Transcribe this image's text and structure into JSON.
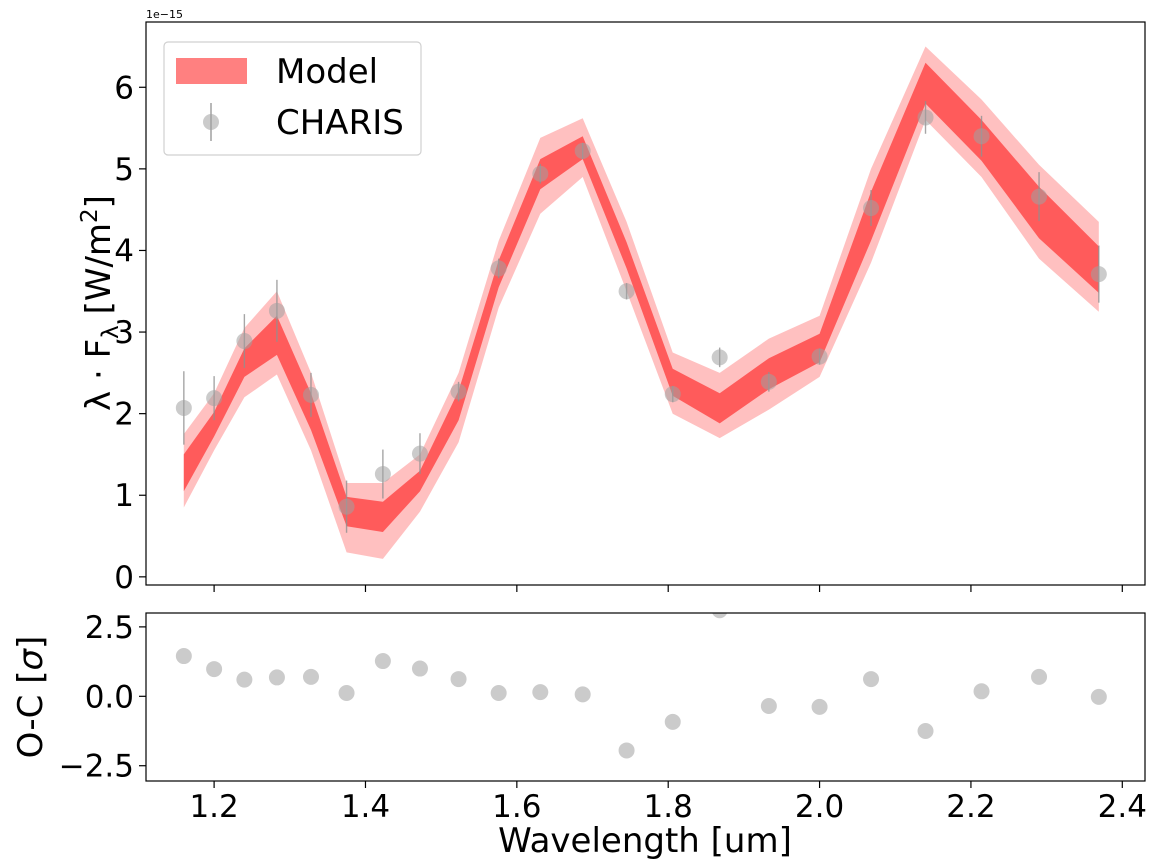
{
  "chart_data": [
    {
      "type": "line",
      "panel": "top",
      "xlabel": "",
      "ylabel_parts": [
        "λ · F",
        "λ",
        " [W/m",
        "2",
        "]"
      ],
      "offset_label": "1e−15",
      "ylim": [
        -0.1,
        6.8
      ],
      "xlim": [
        1.11,
        2.43
      ],
      "grid": false,
      "legend_position": "top-left",
      "yticks": [
        0,
        1,
        2,
        3,
        4,
        5,
        6
      ],
      "ytick_labels": [
        "0",
        "1",
        "2",
        "3",
        "4",
        "5",
        "6"
      ],
      "xticks": [
        1.2,
        1.4,
        1.6,
        1.8,
        2.0,
        2.2,
        2.4
      ],
      "series": [
        {
          "name": "Model",
          "kind": "band",
          "color": "#ff5555",
          "x": [
            1.16,
            1.2,
            1.24,
            1.283,
            1.328,
            1.375,
            1.423,
            1.472,
            1.523,
            1.576,
            1.631,
            1.687,
            1.745,
            1.806,
            1.868,
            1.933,
            2.0,
            2.068,
            2.14,
            2.214,
            2.29,
            2.369
          ],
          "outer_low": [
            0.85,
            1.55,
            2.2,
            2.48,
            1.55,
            0.3,
            0.22,
            0.8,
            1.65,
            3.3,
            4.45,
            4.9,
            3.5,
            2.0,
            1.7,
            2.05,
            2.45,
            3.85,
            5.6,
            4.9,
            3.9,
            3.25
          ],
          "outer_high": [
            1.75,
            2.25,
            3.05,
            3.5,
            2.5,
            1.15,
            1.15,
            1.5,
            2.5,
            4.12,
            5.38,
            5.62,
            4.35,
            2.75,
            2.5,
            2.92,
            3.2,
            5.0,
            6.5,
            5.85,
            5.05,
            4.35
          ],
          "inner_low": [
            1.05,
            1.72,
            2.45,
            2.72,
            1.8,
            0.62,
            0.55,
            1.05,
            1.92,
            3.55,
            4.75,
            5.12,
            3.78,
            2.22,
            1.88,
            2.3,
            2.63,
            4.12,
            5.8,
            5.1,
            4.15,
            3.48
          ],
          "inner_high": [
            1.5,
            2.02,
            2.8,
            3.2,
            2.25,
            0.98,
            0.92,
            1.3,
            2.28,
            3.88,
            5.12,
            5.4,
            4.1,
            2.55,
            2.25,
            2.68,
            2.98,
            4.72,
            6.3,
            5.6,
            4.78,
            4.05
          ]
        },
        {
          "name": "CHARIS",
          "kind": "errorbar",
          "color": "#a0a0a0",
          "x": [
            1.16,
            1.2,
            1.24,
            1.283,
            1.328,
            1.375,
            1.423,
            1.472,
            1.523,
            1.576,
            1.631,
            1.687,
            1.745,
            1.806,
            1.868,
            1.933,
            2.0,
            2.068,
            2.14,
            2.214,
            2.29,
            2.369
          ],
          "y": [
            2.07,
            2.19,
            2.89,
            3.26,
            2.23,
            0.86,
            1.26,
            1.51,
            2.27,
            3.78,
            4.94,
            5.22,
            3.5,
            2.24,
            2.69,
            2.39,
            2.7,
            4.52,
            5.63,
            5.4,
            4.66,
            3.71
          ],
          "yerr": [
            0.45,
            0.27,
            0.33,
            0.38,
            0.27,
            0.32,
            0.3,
            0.25,
            0.12,
            0.12,
            0.12,
            0.1,
            0.1,
            0.1,
            0.12,
            0.12,
            0.1,
            0.22,
            0.2,
            0.25,
            0.3,
            0.35
          ]
        }
      ]
    },
    {
      "type": "scatter",
      "panel": "bottom",
      "xlabel": "Wavelength [um]",
      "ylabel_parts": [
        "O-C [",
        "σ",
        "]"
      ],
      "ylim": [
        -3.05,
        3.0
      ],
      "xlim": [
        1.11,
        2.43
      ],
      "grid": false,
      "yticks": [
        -2.5,
        0.0,
        2.5
      ],
      "ytick_labels": [
        "−2.5",
        "0.0",
        "2.5"
      ],
      "xticks": [
        1.2,
        1.4,
        1.6,
        1.8,
        2.0,
        2.2,
        2.4
      ],
      "xtick_labels": [
        "1.2",
        "1.4",
        "1.6",
        "1.8",
        "2.0",
        "2.2",
        "2.4"
      ],
      "series": [
        {
          "kind": "points",
          "color": "#a0a0a0",
          "x": [
            1.16,
            1.2,
            1.24,
            1.283,
            1.328,
            1.375,
            1.423,
            1.472,
            1.523,
            1.576,
            1.631,
            1.687,
            1.745,
            1.806,
            1.868,
            1.933,
            2.0,
            2.068,
            2.14,
            2.214,
            2.29,
            2.369
          ],
          "y": [
            1.45,
            0.98,
            0.6,
            0.68,
            0.7,
            0.12,
            1.27,
            1.0,
            0.62,
            0.12,
            0.15,
            0.07,
            -1.95,
            -0.92,
            3.1,
            -0.35,
            -0.38,
            0.62,
            -1.25,
            0.18,
            0.7,
            -0.02
          ]
        }
      ]
    }
  ]
}
